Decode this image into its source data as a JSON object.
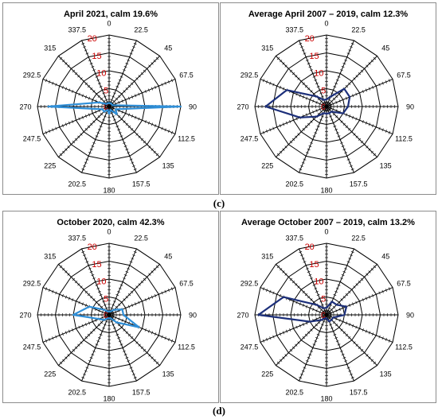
{
  "labels": [
    "(c)",
    "(d)"
  ],
  "chart_data": [
    {
      "type": "radar",
      "title": "April 2021, calm 19.6%",
      "directions": [
        "0",
        "22.5",
        "45",
        "67.5",
        "90",
        "112.5",
        "135",
        "157.5",
        "180",
        "202.5",
        "225",
        "247.5",
        "270",
        "292.5",
        "315",
        "337.5"
      ],
      "radial_ticks": [
        "5",
        "10",
        "15",
        "20"
      ],
      "rmax": 20,
      "colors": {
        "line": "#2f8fd8",
        "radial_tick_text": "#cc0000"
      },
      "series": [
        {
          "values": [
            1,
            1,
            1,
            1,
            20,
            2,
            3,
            1,
            2,
            1,
            2,
            2,
            17,
            3,
            1,
            1
          ]
        }
      ]
    },
    {
      "type": "radar",
      "title": "Average April 2007 – 2019, calm 12.3%",
      "directions": [
        "0",
        "22.5",
        "45",
        "67.5",
        "90",
        "112.5",
        "135",
        "157.5",
        "180",
        "202.5",
        "225",
        "247.5",
        "270",
        "292.5",
        "315",
        "337.5"
      ],
      "radial_ticks": [
        "5",
        "10",
        "15",
        "20"
      ],
      "rmax": 20,
      "colors": {
        "line": "#1c2f7a",
        "radial_tick_text": "#cc0000"
      },
      "series": [
        {
          "values": [
            2,
            3,
            7,
            7,
            6,
            5,
            2,
            2,
            2,
            2,
            4,
            8,
            17,
            12,
            4,
            2
          ]
        }
      ]
    },
    {
      "type": "radar",
      "title": "October 2020, calm 42.3%",
      "directions": [
        "0",
        "22.5",
        "45",
        "67.5",
        "90",
        "112.5",
        "135",
        "157.5",
        "180",
        "202.5",
        "225",
        "247.5",
        "270",
        "292.5",
        "315",
        "337.5"
      ],
      "radial_ticks": [
        "5",
        "10",
        "15",
        "20"
      ],
      "rmax": 20,
      "colors": {
        "line": "#2f8fd8",
        "radial_tick_text": "#cc0000"
      },
      "series": [
        {
          "values": [
            1,
            1,
            2,
            4,
            4,
            9,
            3,
            1,
            1,
            1,
            2,
            3,
            10,
            6,
            2,
            1
          ]
        }
      ]
    },
    {
      "type": "radar",
      "title": "Average October 2007 – 2019, calm 13.2%",
      "directions": [
        "0",
        "22.5",
        "45",
        "67.5",
        "90",
        "112.5",
        "135",
        "157.5",
        "180",
        "202.5",
        "225",
        "247.5",
        "270",
        "292.5",
        "315",
        "337.5"
      ],
      "radial_ticks": [
        "5",
        "10",
        "15",
        "20"
      ],
      "rmax": 20,
      "colors": {
        "line": "#1c2f7a",
        "radial_tick_text": "#cc0000"
      },
      "series": [
        {
          "values": [
            2,
            4,
            4,
            6,
            5,
            2,
            2,
            2,
            1,
            1,
            2,
            5,
            19,
            13,
            4,
            2
          ]
        }
      ]
    }
  ]
}
